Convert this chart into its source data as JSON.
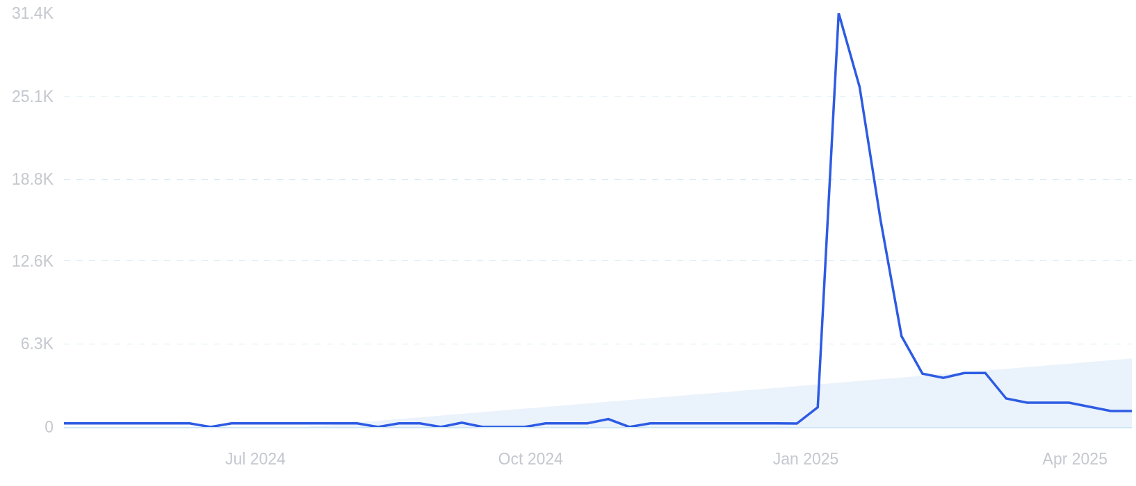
{
  "chart_data": {
    "type": "line",
    "x": [
      "2024-04-28",
      "2024-05-05",
      "2024-05-12",
      "2024-05-19",
      "2024-05-26",
      "2024-06-02",
      "2024-06-09",
      "2024-06-16",
      "2024-06-23",
      "2024-06-30",
      "2024-07-07",
      "2024-07-14",
      "2024-07-21",
      "2024-07-28",
      "2024-08-04",
      "2024-08-11",
      "2024-08-18",
      "2024-08-25",
      "2024-09-01",
      "2024-09-08",
      "2024-09-15",
      "2024-09-22",
      "2024-09-29",
      "2024-10-06",
      "2024-10-13",
      "2024-10-20",
      "2024-10-27",
      "2024-11-03",
      "2024-11-10",
      "2024-11-17",
      "2024-11-24",
      "2024-12-01",
      "2024-12-08",
      "2024-12-15",
      "2024-12-22",
      "2024-12-29",
      "2025-01-05",
      "2025-01-12",
      "2025-01-19",
      "2025-01-26",
      "2025-02-02",
      "2025-02-09",
      "2025-02-16",
      "2025-02-23",
      "2025-03-02",
      "2025-03-09",
      "2025-03-16",
      "2025-03-23",
      "2025-03-30",
      "2025-04-06",
      "2025-04-13",
      "2025-04-20"
    ],
    "series": [
      {
        "type": "area",
        "color": "#eaf2fc",
        "x": [
          "2024-07-17",
          "2025-04-20"
        ],
        "values": [
          0,
          5200
        ]
      },
      {
        "color": "#2d5be3",
        "values": [
          280,
          280,
          280,
          280,
          280,
          280,
          280,
          0,
          280,
          280,
          280,
          280,
          280,
          280,
          280,
          0,
          280,
          280,
          0,
          330,
          0,
          0,
          0,
          280,
          280,
          280,
          600,
          0,
          280,
          280,
          280,
          280,
          280,
          280,
          280,
          260,
          1500,
          31400,
          25800,
          15700,
          6900,
          4050,
          3730,
          4100,
          4100,
          2160,
          1840,
          1840,
          1840,
          1530,
          1210,
          1210
        ]
      }
    ],
    "xlim": [
      "2024-04-28",
      "2025-04-20"
    ],
    "xticks": [
      {
        "value": "2024-07-01",
        "label": "Jul 2024"
      },
      {
        "value": "2024-10-01",
        "label": "Oct 2024"
      },
      {
        "value": "2025-01-01",
        "label": "Jan 2025"
      },
      {
        "value": "2025-04-01",
        "label": "Apr 2025"
      }
    ],
    "ylim": [
      0,
      31400
    ],
    "yticks": [
      0,
      {
        "value": 6300,
        "label": "6.3K"
      },
      {
        "value": 12600,
        "label": "12.6K"
      },
      {
        "value": 18800,
        "label": "18.8K"
      },
      {
        "value": 25100,
        "label": "25.1K"
      },
      {
        "value": 31400,
        "label": "31.4K"
      }
    ],
    "grid": "y"
  }
}
